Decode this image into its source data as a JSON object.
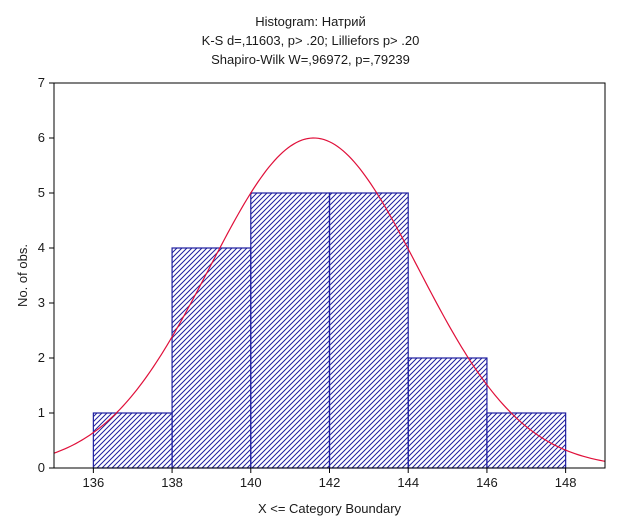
{
  "chart_data": {
    "type": "bar",
    "title": "Histogram: Натрий",
    "subtitle_lines": [
      "K-S d=,11603, p> .20; Lilliefors p> .20",
      "Shapiro-Wilk W=,96972, p=,79239"
    ],
    "xlabel": "X <= Category Boundary",
    "ylabel": "No. of obs.",
    "xlim": [
      135,
      149
    ],
    "ylim": [
      0,
      7
    ],
    "xticks": [
      136,
      138,
      140,
      142,
      144,
      146,
      148
    ],
    "yticks": [
      0,
      1,
      2,
      3,
      4,
      5,
      6,
      7
    ],
    "bins": [
      {
        "from": 136,
        "to": 138,
        "count": 1
      },
      {
        "from": 138,
        "to": 140,
        "count": 4
      },
      {
        "from": 140,
        "to": 142,
        "count": 5
      },
      {
        "from": 142,
        "to": 144,
        "count": 5
      },
      {
        "from": 144,
        "to": 146,
        "count": 2
      },
      {
        "from": 146,
        "to": 148,
        "count": 1
      }
    ],
    "normal_curve": {
      "mean": 141.6,
      "sd": 2.65,
      "peak": 6.0
    },
    "bar_color": "#1f1f9f",
    "curve_color": "#e0103a",
    "grid": false
  }
}
